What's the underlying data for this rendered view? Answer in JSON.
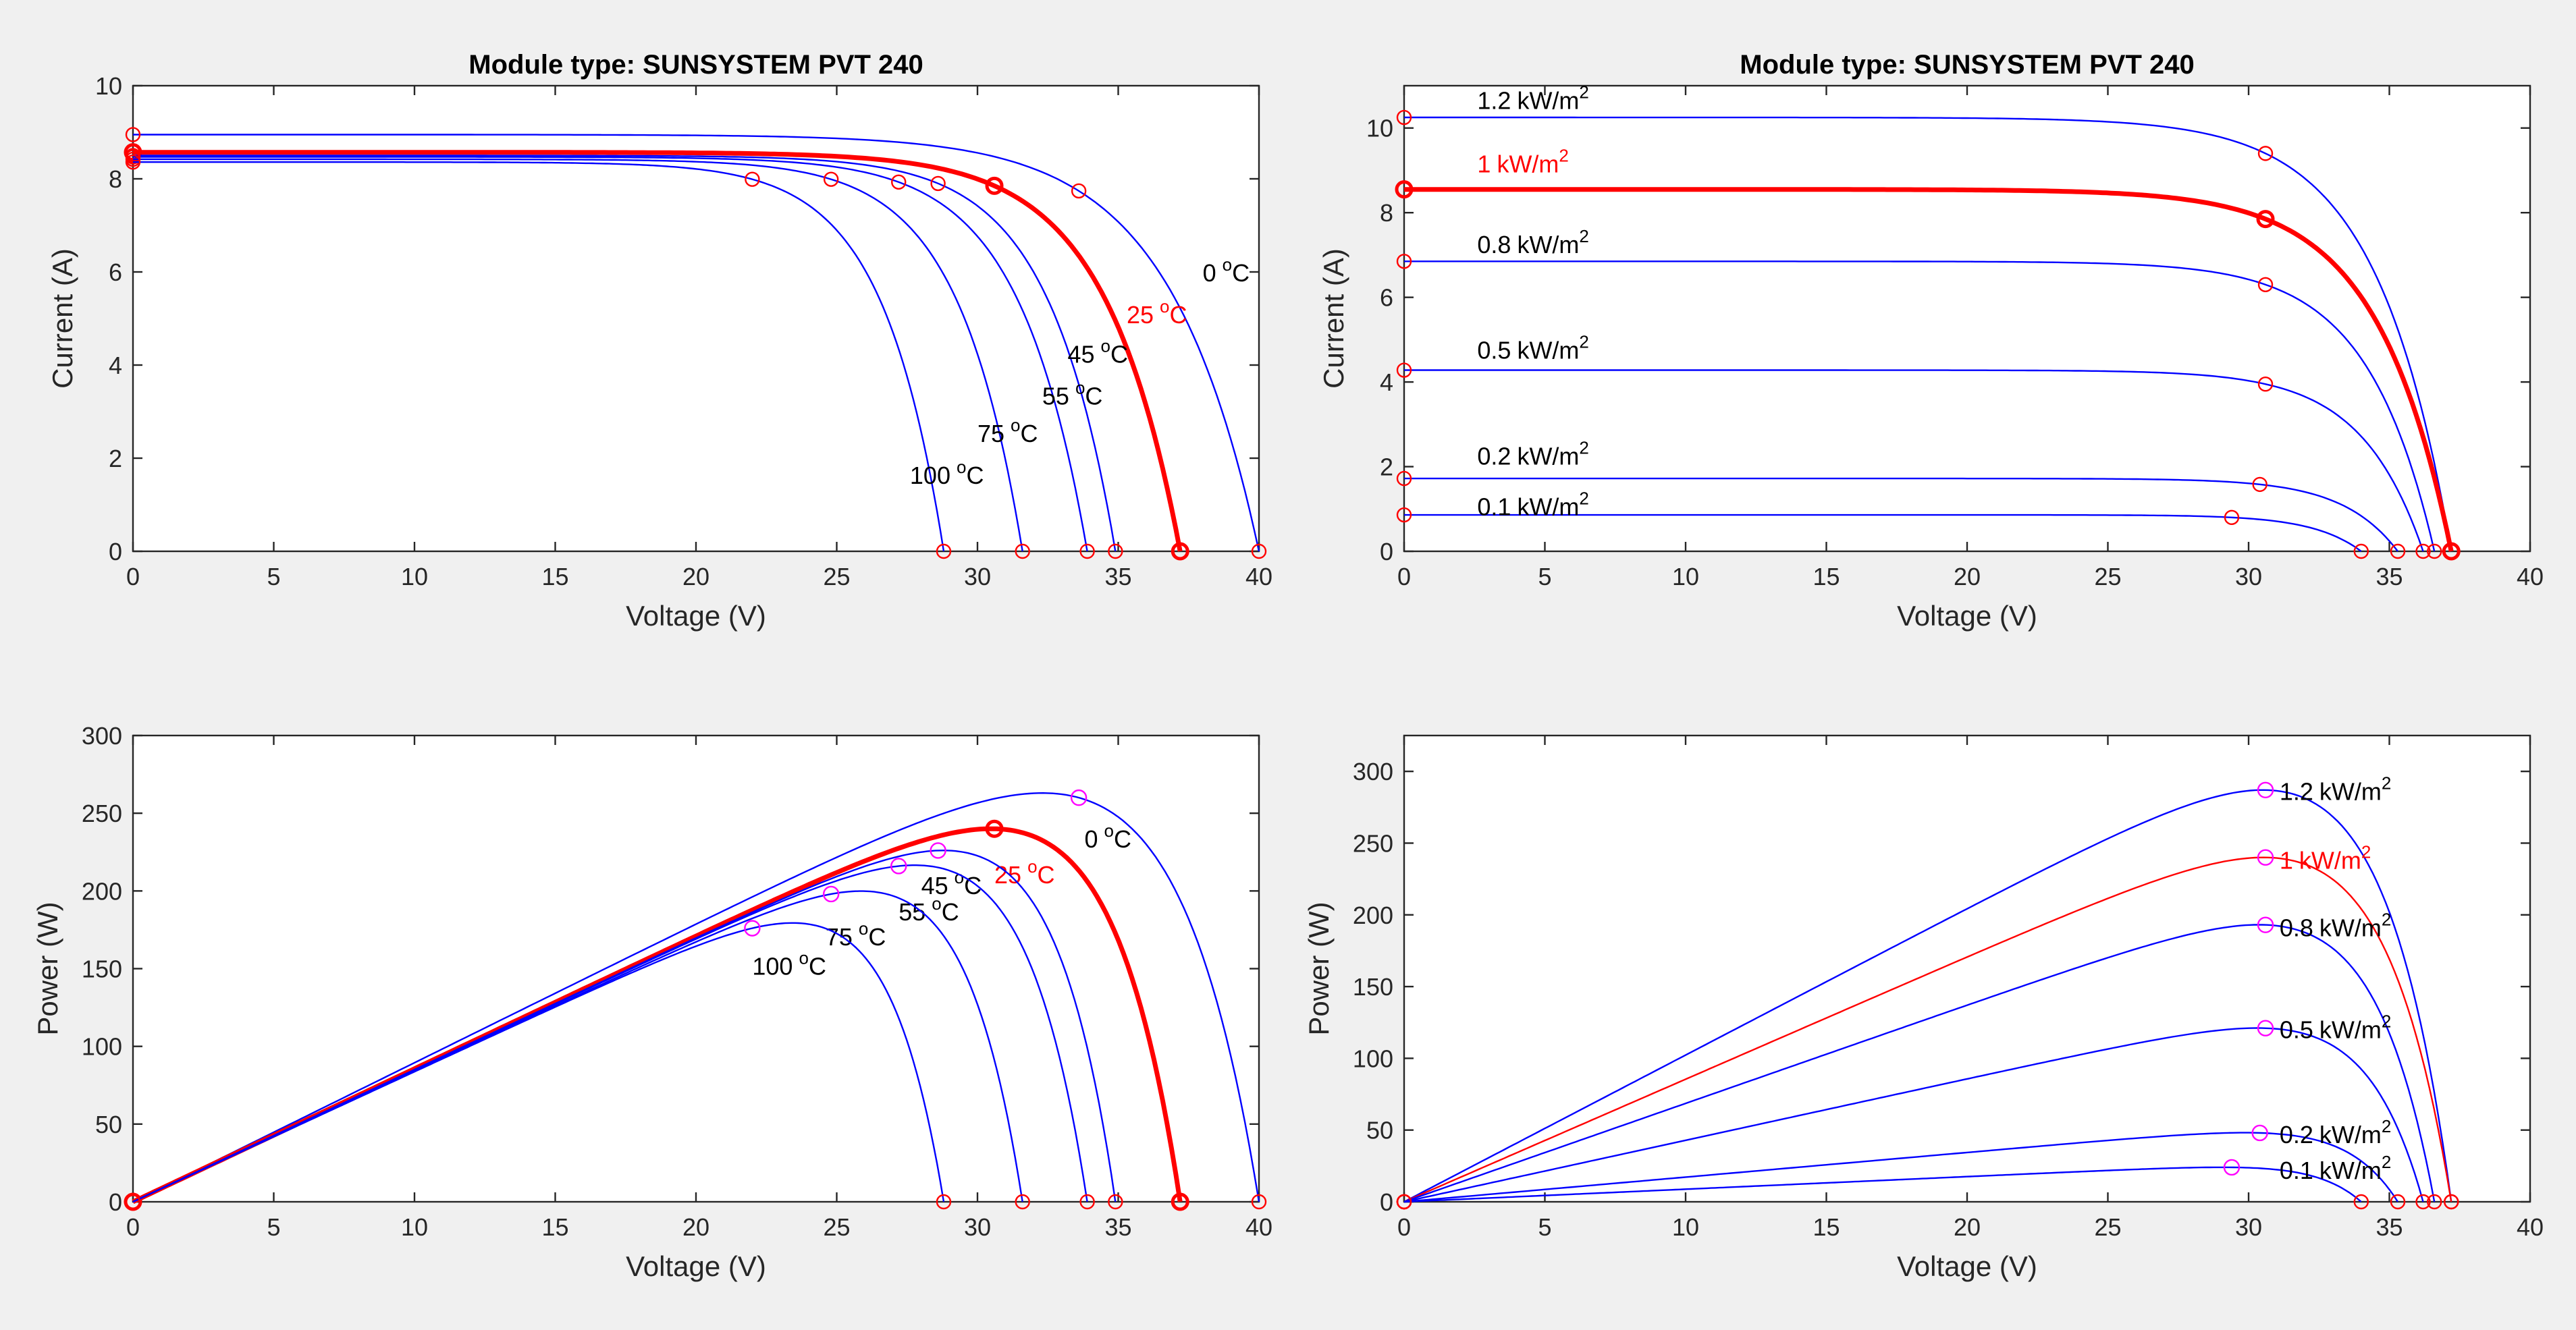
{
  "colors": {
    "blue": "#0000ff",
    "red": "#ff0000",
    "magenta": "#ff00ff",
    "text": "#262626"
  },
  "chart_data": [
    {
      "id": "temp_iv",
      "type": "line",
      "title": "Module type: SUNSYSTEM PVT 240",
      "xlabel": "Voltage (V)",
      "ylabel": "Current (A)",
      "xlim": [
        0,
        40
      ],
      "ylim": [
        0,
        10
      ],
      "xticks": [
        0,
        5,
        10,
        15,
        20,
        25,
        30,
        35,
        40
      ],
      "yticks": [
        0,
        2,
        4,
        6,
        8,
        10
      ],
      "series": [
        {
          "name": "0 °C",
          "isc": 8.95,
          "voc": 40.0,
          "vmp": 33.6,
          "imp": 7.74,
          "color": "blue",
          "highlight": false,
          "label": {
            "value": "0",
            "unit": "C",
            "x": 38.0,
            "y": 5.8
          }
        },
        {
          "name": "25 °C",
          "isc": 8.57,
          "voc": 37.2,
          "vmp": 30.6,
          "imp": 7.85,
          "color": "red",
          "highlight": true,
          "label": {
            "value": "25",
            "unit": "C",
            "x": 35.3,
            "y": 4.9
          }
        },
        {
          "name": "45 °C",
          "isc": 8.5,
          "voc": 34.9,
          "vmp": 28.6,
          "imp": 7.9,
          "color": "blue",
          "highlight": false,
          "label": {
            "value": "45",
            "unit": "C",
            "x": 33.2,
            "y": 4.05
          }
        },
        {
          "name": "55 °C",
          "isc": 8.47,
          "voc": 33.9,
          "vmp": 27.2,
          "imp": 7.93,
          "color": "blue",
          "highlight": false,
          "label": {
            "value": "55",
            "unit": "C",
            "x": 32.3,
            "y": 3.15
          }
        },
        {
          "name": "75 °C",
          "isc": 8.42,
          "voc": 31.6,
          "vmp": 24.8,
          "imp": 7.99,
          "color": "blue",
          "highlight": false,
          "label": {
            "value": "75",
            "unit": "C",
            "x": 30.0,
            "y": 2.35
          }
        },
        {
          "name": "100 °C",
          "isc": 8.36,
          "voc": 28.8,
          "vmp": 22.0,
          "imp": 7.99,
          "color": "blue",
          "highlight": false,
          "label": {
            "value": "100",
            "unit": "C",
            "x": 27.6,
            "y": 1.45
          }
        }
      ]
    },
    {
      "id": "irr_iv",
      "type": "line",
      "title": "Module type: SUNSYSTEM PVT 240",
      "xlabel": "Voltage (V)",
      "ylabel": "Current (A)",
      "xlim": [
        0,
        40
      ],
      "ylim": [
        0,
        11
      ],
      "xticks": [
        0,
        5,
        10,
        15,
        20,
        25,
        30,
        35,
        40
      ],
      "yticks": [
        0,
        2,
        4,
        6,
        8,
        10
      ],
      "series": [
        {
          "name": "1.2 kW/m2",
          "isc": 10.25,
          "voc": 37.2,
          "vmp": 30.6,
          "imp": 9.4,
          "color": "blue",
          "highlight": false,
          "label": {
            "value": "1.2",
            "unit": "kW/m",
            "exp": "2",
            "x": 2.6,
            "y": 10.45
          }
        },
        {
          "name": "1 kW/m2",
          "isc": 8.55,
          "voc": 37.2,
          "vmp": 30.6,
          "imp": 7.85,
          "color": "red",
          "highlight": true,
          "label": {
            "value": "1",
            "unit": "kW/m",
            "exp": "2",
            "x": 2.6,
            "y": 8.95
          }
        },
        {
          "name": "0.8 kW/m2",
          "isc": 6.85,
          "voc": 36.6,
          "vmp": 30.6,
          "imp": 6.3,
          "color": "blue",
          "highlight": false,
          "label": {
            "value": "0.8",
            "unit": "kW/m",
            "exp": "2",
            "x": 2.6,
            "y": 7.05
          }
        },
        {
          "name": "0.5 kW/m2",
          "isc": 4.28,
          "voc": 36.2,
          "vmp": 30.6,
          "imp": 3.95,
          "color": "blue",
          "highlight": false,
          "label": {
            "value": "0.5",
            "unit": "kW/m",
            "exp": "2",
            "x": 2.6,
            "y": 4.55
          }
        },
        {
          "name": "0.2 kW/m2",
          "isc": 1.72,
          "voc": 35.3,
          "vmp": 30.4,
          "imp": 1.58,
          "color": "blue",
          "highlight": false,
          "label": {
            "value": "0.2",
            "unit": "kW/m",
            "exp": "2",
            "x": 2.6,
            "y": 2.05
          }
        },
        {
          "name": "0.1 kW/m2",
          "isc": 0.86,
          "voc": 34.0,
          "vmp": 29.4,
          "imp": 0.8,
          "color": "blue",
          "highlight": false,
          "label": {
            "value": "0.1",
            "unit": "kW/m",
            "exp": "2",
            "x": 2.6,
            "y": 0.85
          }
        }
      ]
    },
    {
      "id": "temp_pv",
      "type": "line",
      "xlabel": "Voltage (V)",
      "ylabel": "Power (W)",
      "xlim": [
        0,
        40
      ],
      "ylim": [
        0,
        300
      ],
      "xticks": [
        0,
        5,
        10,
        15,
        20,
        25,
        30,
        35,
        40
      ],
      "yticks": [
        0,
        50,
        100,
        150,
        200,
        250,
        300
      ],
      "series": [
        {
          "name": "0 °C",
          "ref": 0,
          "pmax": 260,
          "label": {
            "value": "0",
            "unit": "C",
            "x": 33.8,
            "y": 228
          }
        },
        {
          "name": "25 °C",
          "ref": 1,
          "pmax": 240,
          "label": {
            "value": "25",
            "unit": "C",
            "x": 30.6,
            "y": 205
          }
        },
        {
          "name": "45 °C",
          "ref": 2,
          "pmax": 226,
          "label": {
            "value": "45",
            "unit": "C",
            "x": 28.0,
            "y": 198
          }
        },
        {
          "name": "55 °C",
          "ref": 3,
          "pmax": 216,
          "label": {
            "value": "55",
            "unit": "C",
            "x": 27.2,
            "y": 181
          }
        },
        {
          "name": "75 °C",
          "ref": 4,
          "pmax": 198,
          "label": {
            "value": "75",
            "unit": "C",
            "x": 24.6,
            "y": 165
          }
        },
        {
          "name": "100 °C",
          "ref": 5,
          "pmax": 176,
          "label": {
            "value": "100",
            "unit": "C",
            "x": 22.0,
            "y": 146
          }
        }
      ]
    },
    {
      "id": "irr_pv",
      "type": "line",
      "xlabel": "Voltage (V)",
      "ylabel": "Power (W)",
      "xlim": [
        0,
        40
      ],
      "ylim": [
        0,
        325
      ],
      "xticks": [
        0,
        5,
        10,
        15,
        20,
        25,
        30,
        35,
        40
      ],
      "yticks": [
        0,
        50,
        100,
        150,
        200,
        250,
        300
      ],
      "series": [
        {
          "name": "1.2 kW/m2",
          "ref": 0,
          "pmax": 287,
          "vmp": 30.6,
          "label": {
            "value": "1.2",
            "unit": "kW/m",
            "exp": "2",
            "x": 31.1,
            "y": 280
          }
        },
        {
          "name": "1 kW/m2",
          "ref": 1,
          "pmax": 240,
          "vmp": 30.6,
          "label": {
            "value": "1",
            "unit": "kW/m",
            "exp": "2",
            "x": 31.1,
            "y": 232
          }
        },
        {
          "name": "0.8 kW/m2",
          "ref": 2,
          "pmax": 193,
          "vmp": 30.6,
          "label": {
            "value": "0.8",
            "unit": "kW/m",
            "exp": "2",
            "x": 31.1,
            "y": 185
          }
        },
        {
          "name": "0.5 kW/m2",
          "ref": 3,
          "pmax": 121,
          "vmp": 30.6,
          "label": {
            "value": "0.5",
            "unit": "kW/m",
            "exp": "2",
            "x": 31.1,
            "y": 114
          }
        },
        {
          "name": "0.2 kW/m2",
          "ref": 4,
          "pmax": 48,
          "vmp": 30.4,
          "label": {
            "value": "0.2",
            "unit": "kW/m",
            "exp": "2",
            "x": 31.1,
            "y": 41
          }
        },
        {
          "name": "0.1 kW/m2",
          "ref": 5,
          "pmax": 24,
          "vmp": 29.4,
          "label": {
            "value": "0.1",
            "unit": "kW/m",
            "exp": "2",
            "x": 31.1,
            "y": 16
          }
        }
      ]
    }
  ]
}
